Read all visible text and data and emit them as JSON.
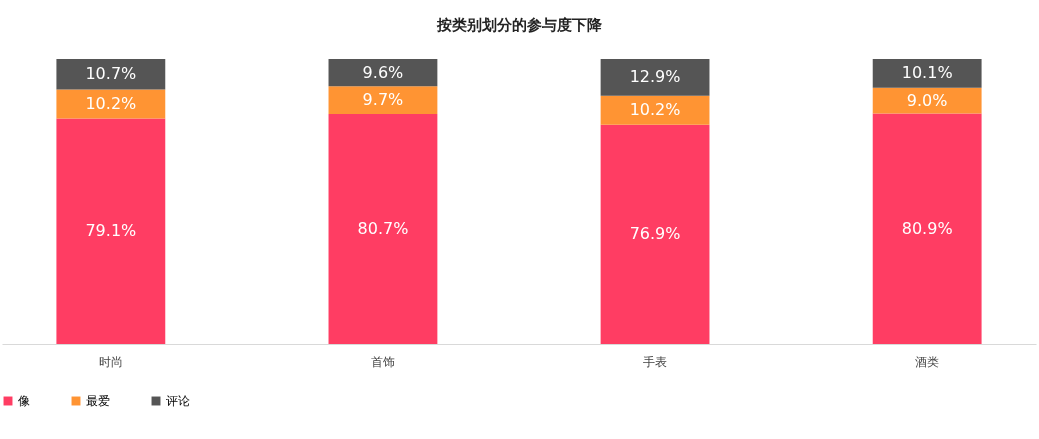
{
  "chart_data": {
    "type": "bar",
    "title": "按类别划分的参与度下降",
    "categories": [
      "时尚",
      "首饰",
      "手表",
      "酒类"
    ],
    "stacked": true,
    "legend": "bottom",
    "series": [
      {
        "name": "像",
        "color": "#ff3d63",
        "values": [
          79.1,
          80.7,
          76.9,
          80.9
        ],
        "value_labels": [
          "79.1%",
          "80.7%",
          "76.9%",
          "80.9%"
        ]
      },
      {
        "name": "最爱",
        "color": "#ff9433",
        "values": [
          10.2,
          9.7,
          10.2,
          9.0
        ],
        "value_labels": [
          "10.2%",
          "9.7%",
          "10.2%",
          "9.0%"
        ]
      },
      {
        "name": "评论",
        "color": "#555555",
        "values": [
          10.7,
          9.6,
          12.9,
          10.1
        ],
        "value_labels": [
          "10.7%",
          "9.6%",
          "12.9%",
          "10.1%"
        ]
      }
    ]
  }
}
